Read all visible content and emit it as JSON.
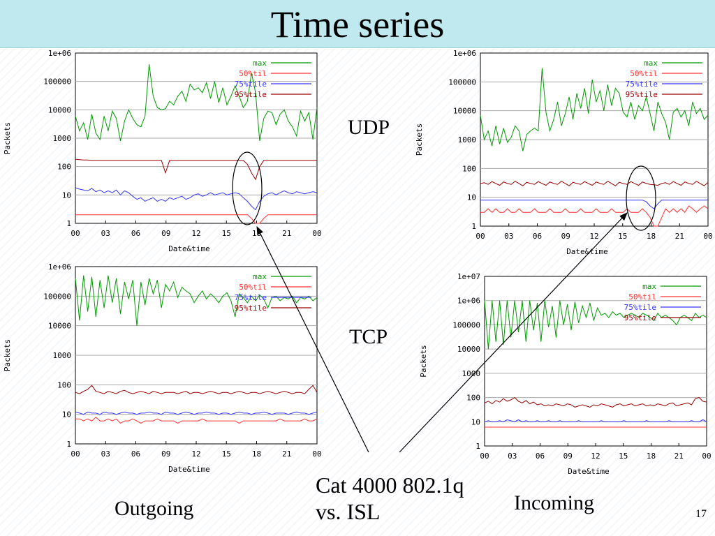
{
  "slide": {
    "title": "Time series",
    "labels": {
      "udp": "UDP",
      "tcp": "TCP",
      "outgoing": "Outgoing",
      "incoming": "Incoming"
    },
    "annotation": [
      "Cat 4000 802.1q",
      "vs. ISL"
    ],
    "slide_number": "17"
  },
  "colors": {
    "max": "#009900",
    "p50": "#ff3030",
    "p75": "#3333ff",
    "p95": "#990000",
    "grid": "#aaaaaa",
    "title_bar": "#bfe9ee"
  },
  "chart_data": [
    {
      "id": "udp-outgoing",
      "type": "line",
      "log_y": true,
      "xlabel": "Date&time",
      "ylabel": "Packets",
      "x_ticks": [
        "00",
        "03",
        "06",
        "09",
        "12",
        "15",
        "18",
        "21",
        "00"
      ],
      "y_ticks": [
        "1",
        "10",
        "100",
        "1000",
        "10000",
        "100000",
        "1e+06"
      ],
      "ylim": [
        1,
        1000000
      ],
      "grid": true,
      "legend_position": "top-right",
      "series": [
        {
          "name": "max",
          "values": [
            6000,
            1800,
            3500,
            900,
            7000,
            1500,
            900,
            6000,
            1800,
            9000,
            5000,
            800,
            4000,
            10000,
            5000,
            3000,
            2500,
            6000,
            400000,
            30000,
            12000,
            10000,
            11000,
            20000,
            15000,
            30000,
            45000,
            20000,
            80000,
            50000,
            60000,
            40000,
            90000,
            25000,
            100000,
            18000,
            60000,
            15000,
            30000,
            70000,
            30000,
            12000,
            20000,
            200000,
            40000,
            800,
            5000,
            9000,
            8000,
            3000,
            7000,
            10000,
            4000,
            2500,
            1200,
            9000,
            4000,
            8000,
            900,
            12000
          ]
        },
        {
          "name": "50%til",
          "values": [
            2,
            2,
            2,
            2,
            2,
            2,
            2,
            2,
            2,
            2,
            2,
            2,
            2,
            2,
            2,
            2,
            2,
            2,
            2,
            2,
            2,
            2,
            2,
            2,
            2,
            2,
            2,
            2,
            2,
            2,
            2,
            2,
            2,
            2,
            2,
            2,
            2,
            2,
            2,
            2,
            2,
            2,
            2,
            1.5,
            1,
            1,
            1.5,
            2,
            2,
            2,
            2,
            2,
            2,
            2,
            2,
            2,
            2,
            2,
            2,
            2
          ]
        },
        {
          "name": "75%tile",
          "values": [
            18,
            16,
            15,
            14,
            17,
            13,
            15,
            12,
            14,
            12,
            15,
            10,
            14,
            12,
            9,
            7,
            8,
            6,
            7,
            8,
            6,
            7,
            6,
            8,
            7,
            8,
            9,
            7,
            8,
            10,
            11,
            9,
            10,
            12,
            10,
            11,
            12,
            10,
            11,
            12,
            11,
            8,
            6,
            4,
            3,
            6,
            9,
            11,
            12,
            10,
            12,
            14,
            12,
            11,
            13,
            12,
            11,
            12,
            13,
            12
          ]
        },
        {
          "name": "95%tile",
          "values": [
            180,
            175,
            170,
            170,
            165,
            165,
            165,
            165,
            165,
            165,
            165,
            165,
            165,
            165,
            165,
            165,
            165,
            165,
            165,
            165,
            165,
            165,
            60,
            165,
            165,
            165,
            165,
            165,
            165,
            165,
            165,
            165,
            165,
            165,
            165,
            165,
            165,
            165,
            165,
            165,
            165,
            165,
            120,
            60,
            35,
            100,
            165,
            165,
            165,
            165,
            165,
            165,
            165,
            165,
            165,
            165,
            165,
            165,
            165,
            165
          ]
        }
      ]
    },
    {
      "id": "udp-incoming",
      "type": "line",
      "log_y": true,
      "xlabel": "Date&time",
      "ylabel": "Packets",
      "x_ticks": [
        "00",
        "03",
        "06",
        "09",
        "12",
        "15",
        "18",
        "21",
        "00"
      ],
      "y_ticks": [
        "1",
        "10",
        "100",
        "1000",
        "10000",
        "100000",
        "1e+06"
      ],
      "ylim": [
        1,
        1000000
      ],
      "grid": true,
      "legend_position": "top-right",
      "series": [
        {
          "name": "max",
          "values": [
            7000,
            1000,
            2000,
            600,
            3000,
            700,
            2500,
            800,
            1200,
            3000,
            2000,
            400,
            1500,
            2000,
            2500,
            2000,
            300000,
            9000,
            2000,
            5000,
            20000,
            3000,
            8000,
            30000,
            5000,
            40000,
            12000,
            60000,
            8000,
            120000,
            20000,
            50000,
            10000,
            80000,
            15000,
            60000,
            40000,
            9000,
            6000,
            20000,
            5000,
            15000,
            10000,
            30000,
            8000,
            2000,
            20000,
            8000,
            4000,
            1000,
            9000,
            12000,
            6000,
            10000,
            3000,
            20000,
            8000,
            12000,
            5000,
            7000
          ]
        },
        {
          "name": "50%til",
          "values": [
            3,
            3,
            4,
            3,
            4,
            3,
            3,
            4,
            3,
            3,
            4,
            3,
            3,
            3,
            4,
            3,
            3,
            3,
            4,
            3,
            3,
            3,
            4,
            3,
            3,
            3,
            4,
            3,
            3,
            3,
            4,
            3,
            3,
            3,
            4,
            3,
            3,
            3,
            4,
            3,
            3,
            3,
            4,
            3,
            2,
            1,
            1,
            2,
            4,
            3,
            4,
            3,
            4,
            3,
            5,
            4,
            3,
            4,
            5,
            4
          ]
        },
        {
          "name": "75%tile",
          "values": [
            8,
            8,
            8,
            8,
            8,
            8,
            8,
            8,
            8,
            8,
            8,
            8,
            8,
            8,
            8,
            8,
            8,
            8,
            8,
            8,
            8,
            8,
            8,
            8,
            8,
            8,
            8,
            8,
            8,
            8,
            8,
            8,
            8,
            8,
            8,
            8,
            8,
            8,
            8,
            8,
            8,
            8,
            8,
            7,
            5,
            4,
            6,
            8,
            8,
            8,
            8,
            8,
            8,
            8,
            8,
            8,
            8,
            8,
            8,
            8
          ]
        },
        {
          "name": "95%tile",
          "values": [
            30,
            32,
            28,
            35,
            30,
            26,
            34,
            30,
            28,
            36,
            30,
            25,
            33,
            30,
            28,
            35,
            30,
            26,
            34,
            30,
            28,
            36,
            30,
            25,
            33,
            30,
            28,
            35,
            30,
            26,
            34,
            30,
            28,
            36,
            30,
            25,
            33,
            30,
            28,
            35,
            30,
            26,
            34,
            30,
            28,
            27,
            26,
            30,
            32,
            28,
            35,
            30,
            26,
            34,
            30,
            28,
            36,
            30,
            25,
            33
          ]
        }
      ]
    },
    {
      "id": "tcp-outgoing",
      "type": "line",
      "log_y": true,
      "xlabel": "Date&time",
      "ylabel": "Packets",
      "x_ticks": [
        "00",
        "03",
        "06",
        "09",
        "12",
        "15",
        "18",
        "21",
        "00"
      ],
      "y_ticks": [
        "1",
        "10",
        "100",
        "1000",
        "10000",
        "100000",
        "1e+06"
      ],
      "ylim": [
        1,
        1000000
      ],
      "grid": true,
      "legend_position": "top-right",
      "series": [
        {
          "name": "max",
          "values": [
            400000,
            15000,
            500000,
            30000,
            450000,
            20000,
            350000,
            40000,
            500000,
            60000,
            400000,
            25000,
            300000,
            80000,
            350000,
            10000,
            300000,
            50000,
            400000,
            120000,
            350000,
            40000,
            250000,
            150000,
            300000,
            90000,
            200000,
            150000,
            120000,
            60000,
            100000,
            150000,
            80000,
            120000,
            90000,
            60000,
            100000,
            130000,
            70000,
            20000,
            120000,
            90000,
            60000,
            100000,
            70000,
            110000,
            80000,
            40000,
            90000,
            100000,
            70000,
            90000,
            80000,
            100000,
            60000,
            90000,
            80000,
            100000,
            70000,
            90000
          ]
        },
        {
          "name": "50%til",
          "values": [
            7,
            7,
            6,
            7,
            6,
            8,
            6,
            6,
            7,
            6,
            7,
            5,
            6,
            6,
            7,
            6,
            5,
            6,
            6,
            6,
            7,
            6,
            6,
            6,
            6,
            5,
            6,
            6,
            6,
            6,
            6,
            7,
            6,
            6,
            6,
            6,
            6,
            6,
            6,
            6,
            5,
            6,
            6,
            6,
            6,
            6,
            6,
            6,
            6,
            6,
            7,
            6,
            6,
            6,
            6,
            6,
            7,
            6,
            6,
            7
          ]
        },
        {
          "name": "75%tile",
          "values": [
            12,
            11,
            10,
            12,
            11,
            11,
            10,
            12,
            11,
            11,
            10,
            11,
            12,
            11,
            11,
            10,
            11,
            11,
            12,
            11,
            11,
            10,
            12,
            11,
            11,
            10,
            11,
            12,
            11,
            10,
            11,
            11,
            12,
            11,
            11,
            10,
            11,
            11,
            10,
            11,
            12,
            11,
            11,
            10,
            11,
            11,
            12,
            11,
            10,
            11,
            11,
            11,
            10,
            11,
            12,
            11,
            11,
            10,
            11,
            12
          ]
        },
        {
          "name": "95%tile",
          "values": [
            55,
            50,
            60,
            70,
            95,
            60,
            55,
            50,
            60,
            55,
            50,
            60,
            65,
            55,
            50,
            55,
            60,
            55,
            50,
            60,
            55,
            50,
            55,
            55,
            55,
            50,
            55,
            60,
            50,
            55,
            55,
            50,
            55,
            60,
            55,
            50,
            55,
            55,
            50,
            55,
            60,
            55,
            50,
            55,
            55,
            50,
            55,
            60,
            55,
            50,
            55,
            60,
            55,
            50,
            55,
            55,
            50,
            70,
            95,
            55
          ]
        }
      ]
    },
    {
      "id": "tcp-incoming",
      "type": "line",
      "log_y": true,
      "xlabel": "Date&time",
      "ylabel": "Packets",
      "x_ticks": [
        "00",
        "03",
        "06",
        "09",
        "12",
        "15",
        "18",
        "21",
        "00"
      ],
      "y_ticks": [
        "1",
        "10",
        "100",
        "1000",
        "10000",
        "100000",
        "1e+06",
        "1e+07"
      ],
      "ylim": [
        1,
        10000000
      ],
      "grid": true,
      "legend_position": "top-right",
      "series": [
        {
          "name": "max",
          "values": [
            1000000,
            10000,
            1000000,
            20000,
            1000000,
            15000,
            1000000,
            30000,
            1000000,
            50000,
            1000000,
            20000,
            1000000,
            60000,
            800000,
            20000,
            1000000,
            80000,
            600000,
            30000,
            1000000,
            100000,
            700000,
            60000,
            900000,
            120000,
            600000,
            200000,
            800000,
            150000,
            500000,
            250000,
            300000,
            200000,
            350000,
            250000,
            300000,
            200000,
            250000,
            300000,
            250000,
            200000,
            300000,
            250000,
            200000,
            150000,
            300000,
            200000,
            250000,
            200000,
            150000,
            100000,
            200000,
            250000,
            200000,
            150000,
            300000,
            200000,
            250000,
            200000
          ]
        },
        {
          "name": "50%til",
          "values": [
            6,
            6,
            6,
            6,
            6,
            6,
            6,
            6,
            6,
            6,
            6,
            6,
            6,
            6,
            6,
            6,
            6,
            6,
            6,
            6,
            6,
            6,
            6,
            6,
            6,
            6,
            6,
            6,
            6,
            6,
            6,
            6,
            6,
            6,
            6,
            6,
            6,
            6,
            6,
            6,
            6,
            6,
            6,
            6,
            6,
            6,
            6,
            6,
            6,
            6,
            6,
            6,
            6,
            6,
            6,
            6,
            6,
            6,
            6,
            6
          ]
        },
        {
          "name": "75%tile",
          "values": [
            10,
            11,
            10,
            10,
            11,
            10,
            12,
            11,
            10,
            12,
            10,
            11,
            10,
            10,
            11,
            10,
            10,
            11,
            10,
            10,
            11,
            10,
            10,
            10,
            10,
            11,
            10,
            10,
            10,
            10,
            10,
            11,
            10,
            10,
            10,
            10,
            10,
            11,
            10,
            10,
            10,
            10,
            10,
            11,
            10,
            10,
            10,
            10,
            10,
            11,
            10,
            10,
            10,
            10,
            10,
            11,
            10,
            10,
            12,
            10
          ]
        },
        {
          "name": "95%tile",
          "values": [
            60,
            70,
            55,
            75,
            65,
            90,
            70,
            80,
            100,
            70,
            60,
            75,
            55,
            65,
            50,
            55,
            45,
            50,
            45,
            55,
            50,
            45,
            55,
            50,
            40,
            45,
            50,
            45,
            40,
            50,
            45,
            55,
            50,
            45,
            40,
            50,
            55,
            45,
            50,
            55,
            45,
            50,
            55,
            45,
            50,
            45,
            55,
            50,
            45,
            55,
            60,
            45,
            50,
            55,
            60,
            50,
            90,
            100,
            70,
            65
          ]
        }
      ]
    }
  ]
}
